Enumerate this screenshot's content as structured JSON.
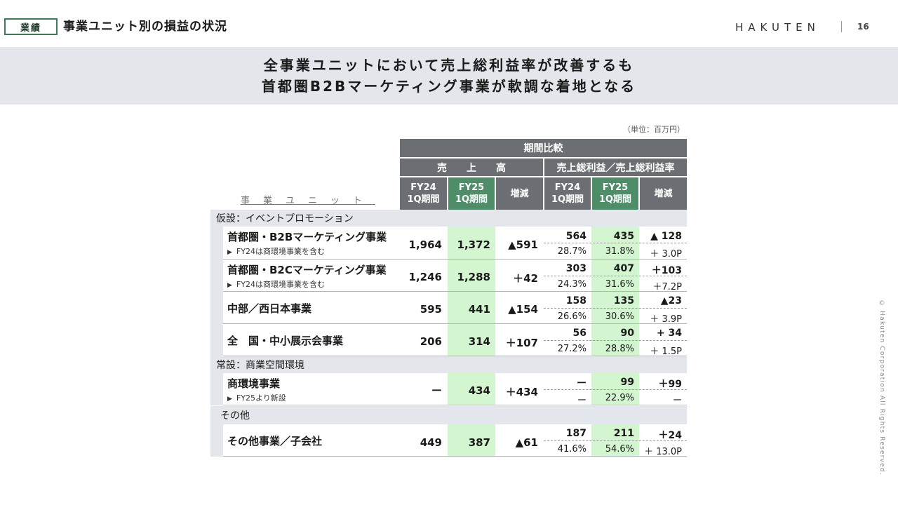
{
  "header": {
    "tag": "業績",
    "title": "事業ユニット別の損益の状況",
    "logo": "HAKUTEN",
    "page": "16"
  },
  "banner": {
    "line1": "全事業ユニットにおいて売上総利益率が改善するも",
    "line2": "首都圏B2Bマーケティング事業が軟調な着地となる"
  },
  "unit_note": "（単位：百万円）",
  "copyright": "© Hakuten Corporation All Rights Reserved.",
  "table": {
    "period_header": "期間比較",
    "sales_header": "売　　上　　高",
    "gp_header": "売上総利益／売上総利益率",
    "unit_col": "事業ユニット",
    "col_fy24": "FY24\n1Q期間",
    "col_fy25": "FY25\n1Q期間",
    "col_diff": "増減",
    "categories": {
      "c1": "仮設：イベントプロモーション",
      "c2": "常設：商業空間環境",
      "c3": "その他"
    },
    "rows": [
      {
        "name": "首都圏・B2Bマーケティング事業",
        "note": "FY24は商環境事業を含む",
        "s24": "1,964",
        "s25": "1,372",
        "sd": "▲591",
        "g24": "564",
        "g25": "435",
        "gd": "▲ 128",
        "r24": "28.7%",
        "r25": "31.8%",
        "rd": "＋ 3.0P"
      },
      {
        "name": "首都圏・B2Cマーケティング事業",
        "note": "FY24は商環境事業を含む",
        "s24": "1,246",
        "s25": "1,288",
        "sd": "＋42",
        "g24": "303",
        "g25": "407",
        "gd": "＋103",
        "r24": "24.3%",
        "r25": "31.6%",
        "rd": "＋7.2P"
      },
      {
        "name": "中部／西日本事業",
        "note": "",
        "s24": "595",
        "s25": "441",
        "sd": "▲154",
        "g24": "158",
        "g25": "135",
        "gd": "▲23",
        "r24": "26.6%",
        "r25": "30.6%",
        "rd": "＋ 3.9P"
      },
      {
        "name": "全　国・中小展示会事業",
        "note": "",
        "s24": "206",
        "s25": "314",
        "sd": "＋107",
        "g24": "56",
        "g25": "90",
        "gd": "+ 34",
        "r24": "27.2%",
        "r25": "28.8%",
        "rd": "＋ 1.5P"
      },
      {
        "name": "商環境事業",
        "note": "FY25より新設",
        "s24": "ー",
        "s25": "434",
        "sd": "＋434",
        "g24": "ー",
        "g25": "99",
        "gd": "＋99",
        "r24": "ー",
        "r25": "22.9%",
        "rd": "ー"
      },
      {
        "name": "その他事業／子会社",
        "note": "",
        "s24": "449",
        "s25": "387",
        "sd": "▲61",
        "g24": "187",
        "g25": "211",
        "gd": "＋24",
        "r24": "41.6%",
        "r25": "54.6%",
        "rd": "＋ 13.0P"
      }
    ]
  }
}
